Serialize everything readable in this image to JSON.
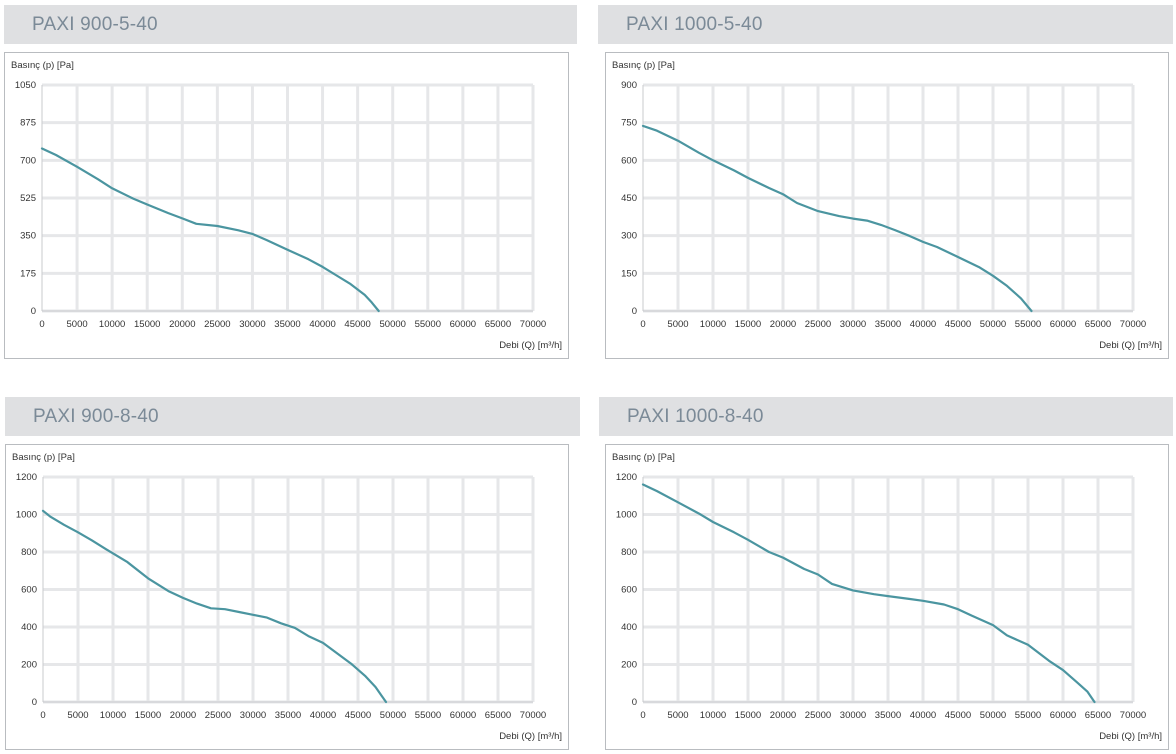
{
  "chart_data": [
    {
      "type": "line",
      "title": "PAXI 900-5-40",
      "xlabel": "Debi (Q) [m³/h]",
      "ylabel": "Basınç (p) [Pa]",
      "xlim": [
        0,
        70000
      ],
      "ylim": [
        0,
        1050
      ],
      "x_ticks": [
        "0",
        "5000",
        "10000",
        "15000",
        "20000",
        "25000",
        "30000",
        "35000",
        "40000",
        "45000",
        "50000",
        "55000",
        "60000",
        "65000",
        "70000"
      ],
      "y_ticks": [
        "0",
        "175",
        "350",
        "525",
        "700",
        "875",
        "1050"
      ],
      "grid": true,
      "series": [
        {
          "x": [
            0,
            2000,
            5000,
            8000,
            10000,
            13000,
            15000,
            18000,
            20000,
            22000,
            25000,
            28000,
            30000,
            32000,
            35000,
            38000,
            40000,
            42000,
            44000,
            46000,
            47000,
            48000
          ],
          "y": [
            755,
            725,
            670,
            612,
            570,
            522,
            495,
            455,
            430,
            405,
            395,
            375,
            358,
            330,
            285,
            240,
            205,
            165,
            125,
            75,
            40,
            0
          ]
        }
      ]
    },
    {
      "type": "line",
      "title": "PAXI 1000-5-40",
      "xlabel": "Debi (Q) [m³/h]",
      "ylabel": "Basınç (p) [Pa]",
      "xlim": [
        0,
        70000
      ],
      "ylim": [
        0,
        900
      ],
      "x_ticks": [
        "0",
        "5000",
        "10000",
        "15000",
        "20000",
        "25000",
        "30000",
        "35000",
        "40000",
        "45000",
        "50000",
        "55000",
        "60000",
        "65000",
        "70000"
      ],
      "y_ticks": [
        "0",
        "150",
        "300",
        "450",
        "600",
        "750",
        "900"
      ],
      "grid": true,
      "series": [
        {
          "x": [
            0,
            2000,
            5000,
            8000,
            10000,
            13000,
            15000,
            18000,
            20000,
            22000,
            25000,
            28000,
            30000,
            32000,
            34000,
            36000,
            38000,
            40000,
            42000,
            45000,
            48000,
            50000,
            52000,
            54000,
            55500
          ],
          "y": [
            737,
            718,
            678,
            630,
            600,
            560,
            530,
            490,
            465,
            430,
            398,
            378,
            368,
            360,
            343,
            322,
            300,
            275,
            255,
            215,
            175,
            140,
            100,
            50,
            0
          ]
        }
      ]
    },
    {
      "type": "line",
      "title": "PAXI 900-8-40",
      "xlabel": "Debi (Q) [m³/h]",
      "ylabel": "Basınç (p) [Pa]",
      "xlim": [
        0,
        70000
      ],
      "ylim": [
        0,
        1200
      ],
      "x_ticks": [
        "0",
        "5000",
        "10000",
        "15000",
        "20000",
        "25000",
        "30000",
        "35000",
        "40000",
        "45000",
        "50000",
        "55000",
        "60000",
        "65000",
        "70000"
      ],
      "y_ticks": [
        "0",
        "200",
        "400",
        "600",
        "800",
        "1000",
        "1200"
      ],
      "grid": true,
      "series": [
        {
          "x": [
            0,
            1000,
            3000,
            5000,
            7000,
            9000,
            12000,
            15000,
            18000,
            20000,
            22000,
            24000,
            26000,
            28000,
            30000,
            32000,
            34000,
            36000,
            38000,
            40000,
            42000,
            44000,
            46000,
            47500,
            49000
          ],
          "y": [
            1020,
            990,
            945,
            905,
            862,
            815,
            748,
            660,
            590,
            555,
            525,
            500,
            495,
            480,
            465,
            450,
            420,
            395,
            350,
            315,
            260,
            205,
            140,
            80,
            0
          ]
        }
      ]
    },
    {
      "type": "line",
      "title": "PAXI 1000-8-40",
      "xlabel": "Debi (Q) [m³/h]",
      "ylabel": "Basınç (p) [Pa]",
      "xlim": [
        0,
        70000
      ],
      "ylim": [
        0,
        1200
      ],
      "x_ticks": [
        "0",
        "5000",
        "10000",
        "15000",
        "20000",
        "25000",
        "30000",
        "35000",
        "40000",
        "45000",
        "50000",
        "55000",
        "60000",
        "65000",
        "70000"
      ],
      "y_ticks": [
        "0",
        "200",
        "400",
        "600",
        "800",
        "1000",
        "1200"
      ],
      "grid": true,
      "series": [
        {
          "x": [
            0,
            2000,
            5000,
            8000,
            10000,
            13000,
            15000,
            18000,
            20000,
            23000,
            25000,
            27000,
            30000,
            33000,
            35000,
            38000,
            40000,
            43000,
            45000,
            47000,
            50000,
            52000,
            55000,
            58000,
            60000,
            62000,
            63500,
            64500
          ],
          "y": [
            1160,
            1125,
            1065,
            1005,
            960,
            905,
            865,
            800,
            770,
            710,
            680,
            630,
            595,
            575,
            565,
            550,
            540,
            520,
            495,
            460,
            410,
            355,
            305,
            220,
            170,
            105,
            55,
            0
          ]
        }
      ]
    }
  ]
}
